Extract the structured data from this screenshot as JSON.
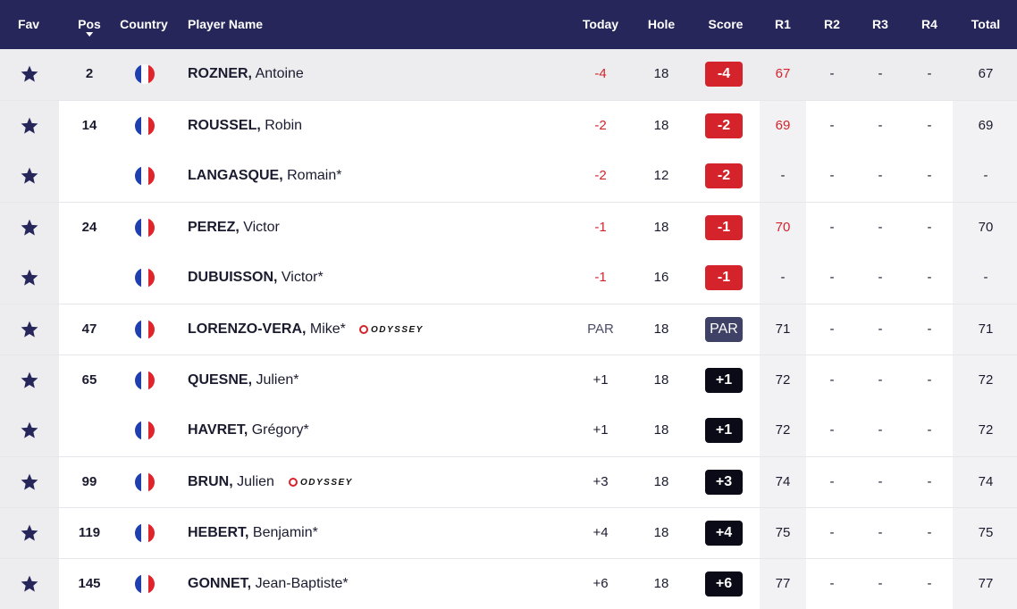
{
  "header": {
    "fav": "Fav",
    "pos": "Pos",
    "country": "Country",
    "player_name": "Player Name",
    "today": "Today",
    "hole": "Hole",
    "score": "Score",
    "r1": "R1",
    "r2": "R2",
    "r3": "R3",
    "r4": "R4",
    "total": "Total"
  },
  "colors": {
    "header_bg": "#26265a",
    "under_par": "#d4232b",
    "par_badge": "#3f4266",
    "over_par_badge": "#0b0b17",
    "star": "#26265a",
    "flag_blue": "#1f3fae",
    "flag_white": "#ffffff",
    "flag_red": "#e0242c"
  },
  "icons": {
    "favorite": "star-icon",
    "country": "france-flag-icon",
    "sort": "sort-down-caret-icon",
    "sponsor": "odyssey-logo"
  },
  "rows": [
    {
      "pos": "2",
      "last": "ROZNER,",
      "first": " Antoine",
      "sponsor": "",
      "today": "-4",
      "hole": "18",
      "score": "-4",
      "r1": "67",
      "r2": "-",
      "r3": "-",
      "r4": "-",
      "total": "67"
    },
    {
      "pos": "14",
      "last": "ROUSSEL,",
      "first": " Robin",
      "sponsor": "",
      "today": "-2",
      "hole": "18",
      "score": "-2",
      "r1": "69",
      "r2": "-",
      "r3": "-",
      "r4": "-",
      "total": "69"
    },
    {
      "pos": "",
      "last": "LANGASQUE,",
      "first": " Romain*",
      "sponsor": "",
      "today": "-2",
      "hole": "12",
      "score": "-2",
      "r1": "-",
      "r2": "-",
      "r3": "-",
      "r4": "-",
      "total": "-"
    },
    {
      "pos": "24",
      "last": "PEREZ,",
      "first": " Victor",
      "sponsor": "",
      "today": "-1",
      "hole": "18",
      "score": "-1",
      "r1": "70",
      "r2": "-",
      "r3": "-",
      "r4": "-",
      "total": "70"
    },
    {
      "pos": "",
      "last": "DUBUISSON,",
      "first": " Victor*",
      "sponsor": "",
      "today": "-1",
      "hole": "16",
      "score": "-1",
      "r1": "-",
      "r2": "-",
      "r3": "-",
      "r4": "-",
      "total": "-"
    },
    {
      "pos": "47",
      "last": "LORENZO-VERA,",
      "first": " Mike*",
      "sponsor": "ODYSSEY",
      "today": "PAR",
      "hole": "18",
      "score": "PAR",
      "r1": "71",
      "r2": "-",
      "r3": "-",
      "r4": "-",
      "total": "71"
    },
    {
      "pos": "65",
      "last": "QUESNE,",
      "first": " Julien*",
      "sponsor": "",
      "today": "+1",
      "hole": "18",
      "score": "+1",
      "r1": "72",
      "r2": "-",
      "r3": "-",
      "r4": "-",
      "total": "72"
    },
    {
      "pos": "",
      "last": "HAVRET,",
      "first": " Grégory*",
      "sponsor": "",
      "today": "+1",
      "hole": "18",
      "score": "+1",
      "r1": "72",
      "r2": "-",
      "r3": "-",
      "r4": "-",
      "total": "72"
    },
    {
      "pos": "99",
      "last": "BRUN,",
      "first": " Julien",
      "sponsor": "ODYSSEY",
      "today": "+3",
      "hole": "18",
      "score": "+3",
      "r1": "74",
      "r2": "-",
      "r3": "-",
      "r4": "-",
      "total": "74"
    },
    {
      "pos": "119",
      "last": "HEBERT,",
      "first": " Benjamin*",
      "sponsor": "",
      "today": "+4",
      "hole": "18",
      "score": "+4",
      "r1": "75",
      "r2": "-",
      "r3": "-",
      "r4": "-",
      "total": "75"
    },
    {
      "pos": "145",
      "last": "GONNET,",
      "first": " Jean-Baptiste*",
      "sponsor": "",
      "today": "+6",
      "hole": "18",
      "score": "+6",
      "r1": "77",
      "r2": "-",
      "r3": "-",
      "r4": "-",
      "total": "77"
    }
  ]
}
